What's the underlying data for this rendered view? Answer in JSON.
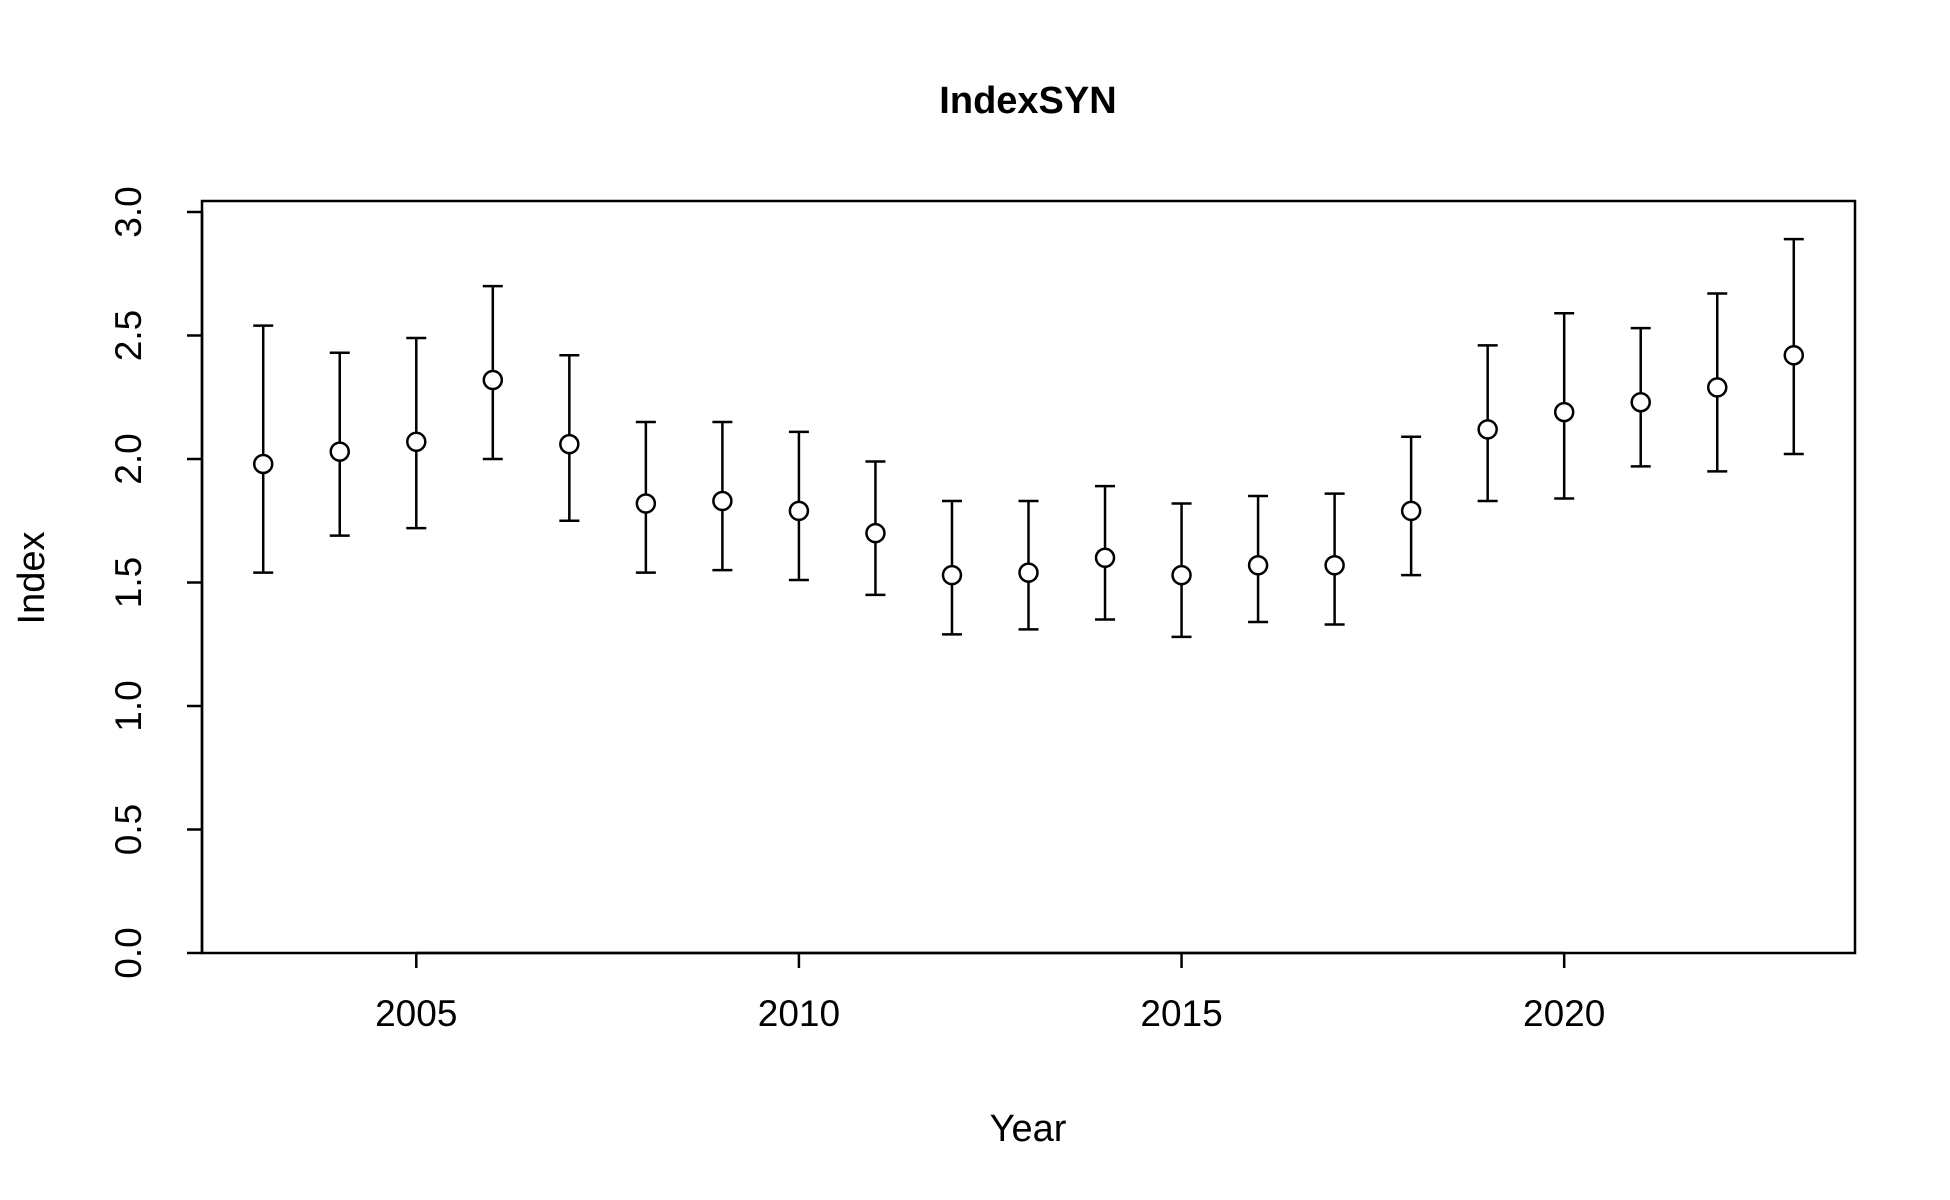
{
  "chart_data": {
    "type": "scatter",
    "title": "IndexSYN",
    "xlabel": "Year",
    "ylabel": "Index",
    "xlim": [
      2002.2,
      2023.8
    ],
    "ylim": [
      0,
      3.0
    ],
    "x_ticks": [
      2005,
      2010,
      2015,
      2020
    ],
    "x_tick_labels": [
      "2005",
      "2010",
      "2015",
      "2020"
    ],
    "y_ticks": [
      0,
      0.5,
      1.0,
      1.5,
      2.0,
      2.5,
      3.0
    ],
    "y_tick_labels": [
      "0.0",
      "0.5",
      "1.0",
      "1.5",
      "2.0",
      "2.5",
      "3.0"
    ],
    "grid": false,
    "error_bars": true,
    "series": [
      {
        "x": [
          2003,
          2004,
          2005,
          2006,
          2007,
          2008,
          2009,
          2010,
          2011,
          2012,
          2013,
          2014,
          2015,
          2016,
          2017,
          2018,
          2019,
          2020,
          2021,
          2022,
          2023
        ],
        "y": [
          1.98,
          2.03,
          2.07,
          2.32,
          2.06,
          1.82,
          1.83,
          1.79,
          1.7,
          1.53,
          1.54,
          1.6,
          1.53,
          1.57,
          1.57,
          1.79,
          2.12,
          2.19,
          2.23,
          2.29,
          2.42
        ],
        "lower": [
          1.54,
          1.69,
          1.72,
          2.0,
          1.75,
          1.54,
          1.55,
          1.51,
          1.45,
          1.29,
          1.31,
          1.35,
          1.28,
          1.34,
          1.33,
          1.53,
          1.83,
          1.84,
          1.97,
          1.95,
          2.02
        ],
        "upper": [
          2.54,
          2.43,
          2.49,
          2.7,
          2.42,
          2.15,
          2.15,
          2.11,
          1.99,
          1.83,
          1.83,
          1.89,
          1.82,
          1.85,
          1.86,
          2.09,
          2.46,
          2.59,
          2.53,
          2.67,
          2.89
        ]
      }
    ]
  }
}
